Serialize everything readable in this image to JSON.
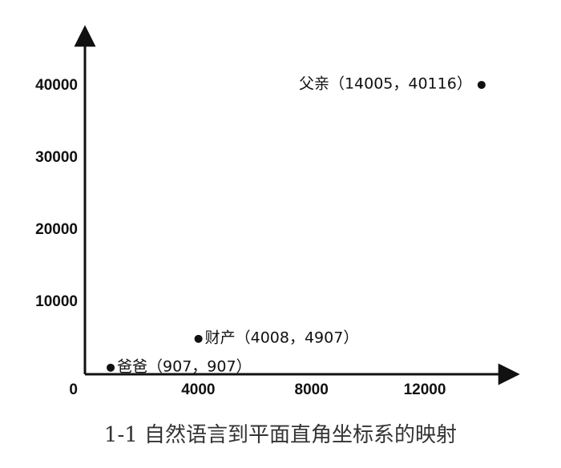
{
  "chart_data": {
    "type": "scatter",
    "title": "1-1 自然语言到平面直角坐标系的映射",
    "x": [
      907,
      4008,
      14005
    ],
    "values": [
      907,
      4907,
      40116
    ],
    "point_labels": [
      "爸爸（907，907）",
      "财产（4008，4907）",
      "父亲（14005，40116）"
    ],
    "color": "#111111",
    "xlim": [
      0,
      15000
    ],
    "ylim": [
      0,
      48000
    ],
    "xticks": [
      0,
      4000,
      8000,
      12000
    ],
    "yticks": [
      10000,
      20000,
      30000,
      40000
    ],
    "grid": false
  }
}
